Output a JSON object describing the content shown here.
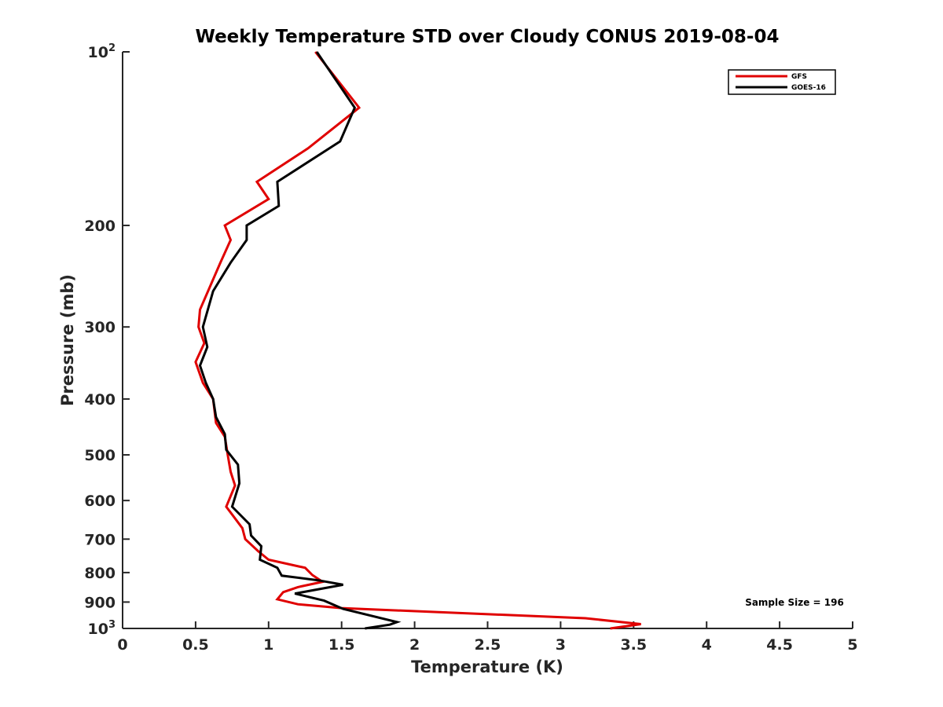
{
  "chart_data": {
    "type": "line",
    "title": "Weekly Temperature STD over Cloudy CONUS 2019-08-04",
    "xlabel": "Temperature (K)",
    "ylabel": "Pressure (mb)",
    "xlim": [
      0,
      5
    ],
    "ylim": [
      100,
      1000
    ],
    "y_scale": "log",
    "y_reversed": true,
    "grid": false,
    "legend_position": "top-right",
    "x_ticks": [
      {
        "value": 0,
        "label": "0"
      },
      {
        "value": 0.5,
        "label": "0.5"
      },
      {
        "value": 1,
        "label": "1"
      },
      {
        "value": 1.5,
        "label": "1.5"
      },
      {
        "value": 2,
        "label": "2"
      },
      {
        "value": 2.5,
        "label": "2.5"
      },
      {
        "value": 3,
        "label": "3"
      },
      {
        "value": 3.5,
        "label": "3.5"
      },
      {
        "value": 4,
        "label": "4"
      },
      {
        "value": 4.5,
        "label": "4.5"
      },
      {
        "value": 5,
        "label": "5"
      }
    ],
    "y_ticks": [
      {
        "value": 100,
        "label": "10",
        "sup": "2"
      },
      {
        "value": 200,
        "label": "200",
        "sup": ""
      },
      {
        "value": 300,
        "label": "300",
        "sup": ""
      },
      {
        "value": 400,
        "label": "400",
        "sup": ""
      },
      {
        "value": 500,
        "label": "500",
        "sup": ""
      },
      {
        "value": 600,
        "label": "600",
        "sup": ""
      },
      {
        "value": 700,
        "label": "700",
        "sup": ""
      },
      {
        "value": 800,
        "label": "800",
        "sup": ""
      },
      {
        "value": 900,
        "label": "900",
        "sup": ""
      },
      {
        "value": 1000,
        "label": "10",
        "sup": "3"
      }
    ],
    "series": [
      {
        "name": "GFS",
        "color": "#e00000",
        "points": [
          [
            1.32,
            100
          ],
          [
            1.62,
            125
          ],
          [
            1.27,
            147
          ],
          [
            0.92,
            168
          ],
          [
            1.0,
            180
          ],
          [
            0.7,
            200
          ],
          [
            0.74,
            212
          ],
          [
            0.67,
            232
          ],
          [
            0.53,
            280
          ],
          [
            0.52,
            300
          ],
          [
            0.56,
            320
          ],
          [
            0.5,
            345
          ],
          [
            0.55,
            375
          ],
          [
            0.62,
            400
          ],
          [
            0.64,
            440
          ],
          [
            0.7,
            465
          ],
          [
            0.72,
            500
          ],
          [
            0.74,
            535
          ],
          [
            0.77,
            565
          ],
          [
            0.71,
            615
          ],
          [
            0.82,
            670
          ],
          [
            0.84,
            700
          ],
          [
            0.93,
            735
          ],
          [
            1.0,
            760
          ],
          [
            1.25,
            785
          ],
          [
            1.3,
            808
          ],
          [
            1.37,
            830
          ],
          [
            1.2,
            848
          ],
          [
            1.1,
            865
          ],
          [
            1.06,
            890
          ],
          [
            1.2,
            908
          ],
          [
            1.5,
            922
          ],
          [
            3.17,
            960
          ],
          [
            3.55,
            983
          ],
          [
            3.34,
            1000
          ]
        ]
      },
      {
        "name": "GOES-16",
        "color": "#000000",
        "points": [
          [
            1.33,
            100
          ],
          [
            1.59,
            125
          ],
          [
            1.49,
            143
          ],
          [
            1.06,
            168
          ],
          [
            1.07,
            185
          ],
          [
            0.85,
            200
          ],
          [
            0.85,
            212
          ],
          [
            0.74,
            232
          ],
          [
            0.62,
            260
          ],
          [
            0.55,
            300
          ],
          [
            0.58,
            325
          ],
          [
            0.53,
            350
          ],
          [
            0.57,
            375
          ],
          [
            0.62,
            400
          ],
          [
            0.64,
            430
          ],
          [
            0.7,
            460
          ],
          [
            0.71,
            490
          ],
          [
            0.79,
            520
          ],
          [
            0.8,
            560
          ],
          [
            0.75,
            615
          ],
          [
            0.87,
            660
          ],
          [
            0.88,
            690
          ],
          [
            0.95,
            720
          ],
          [
            0.94,
            760
          ],
          [
            1.06,
            785
          ],
          [
            1.09,
            810
          ],
          [
            1.34,
            825
          ],
          [
            1.51,
            840
          ],
          [
            1.18,
            870
          ],
          [
            1.38,
            895
          ],
          [
            1.51,
            925
          ],
          [
            1.88,
            975
          ],
          [
            1.83,
            985
          ],
          [
            1.66,
            1000
          ]
        ]
      }
    ],
    "annotations": [
      {
        "text": "Sample Size = 196",
        "x": 4.5,
        "y": 900
      }
    ]
  }
}
